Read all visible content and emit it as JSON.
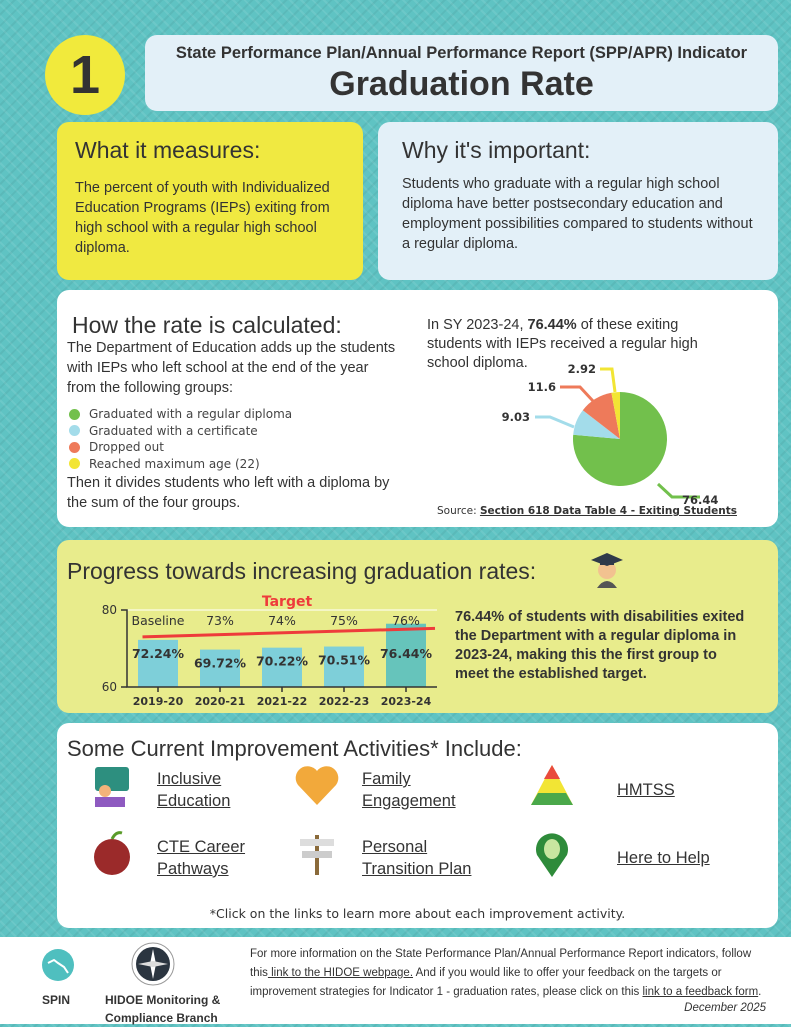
{
  "header": {
    "number": "1",
    "subtitle": "State Performance Plan/Annual Performance Report (SPP/APR) Indicator",
    "title": "Graduation Rate"
  },
  "measures": {
    "heading": "What it measures:",
    "text": "The percent of youth with Individualized Education Programs (IEPs) exiting from high school with a regular high school diploma."
  },
  "important": {
    "heading": "Why it's important:",
    "text": "Students who graduate with a regular high school diploma have better postsecondary education and employment possibilities compared to students without a regular diploma."
  },
  "calc": {
    "heading": "How the rate is calculated:",
    "intro": "The Department of Education adds up the students with IEPs who left school at the end of the year from the following groups:",
    "legend": [
      {
        "label": "Graduated with a regular diploma",
        "color": "#72c04c"
      },
      {
        "label": "Graduated with a certificate",
        "color": "#a3dcea"
      },
      {
        "label": "Dropped out",
        "color": "#ee7a5a"
      },
      {
        "label": "Reached maximum age (22)",
        "color": "#f2e534"
      }
    ],
    "outro": "Then it divides students who left with a diploma by the sum of the four groups.",
    "pie_text_pre": "In SY 2023-24, ",
    "pie_text_bold": "76.44%",
    "pie_text_post": " of these exiting students with IEPs received a regular high school diploma.",
    "source_label": "Source:",
    "source_link": "Section 618 Data Table 4 - Exiting Students"
  },
  "progress": {
    "heading": "Progress towards increasing graduation rates:",
    "text_bold": "76.44%",
    "text": " of students with disabilities exited the Department with a regular diploma in 2023-24, making this the first group to meet the established target."
  },
  "activities": {
    "heading": "Some Current Improvement Activities* Include:",
    "items": [
      {
        "l1": "Inclusive",
        "l2": "Education",
        "icon": "teacher-icon"
      },
      {
        "l1": "Family",
        "l2": "Engagement",
        "icon": "handshake-heart-icon"
      },
      {
        "l1": "HMTSS",
        "l2": "",
        "icon": "pyramid-icon"
      },
      {
        "l1": "CTE Career",
        "l2": "Pathways",
        "icon": "apple-globe-icon"
      },
      {
        "l1": "Personal",
        "l2": "Transition Plan",
        "icon": "signpost-icon"
      },
      {
        "l1": "Here to Help",
        "l2": "",
        "icon": "map-pin-leaf-icon"
      }
    ],
    "note": "*Click on the links to learn more about each improvement activity."
  },
  "footer": {
    "spin": "SPIN",
    "branch1": "HIDOE Monitoring &",
    "branch2": "Compliance Branch",
    "t1": "For more information on the State Performance Plan/Annual Performance Report indicators, follow this",
    "link1": " link to the HIDOE webpage.",
    "t2": "  And if you would like to offer your feedback on the targets or improvement strategies for Indicator 1 - graduation rates, please click on this ",
    "link2": "link to a feedback form",
    "t3": ".",
    "date": "December 2025"
  },
  "chart_data": [
    {
      "type": "pie",
      "values": [
        76.44,
        9.03,
        11.6,
        2.92
      ],
      "labels": [
        "76.44",
        "9.03",
        "11.6",
        "2.92"
      ],
      "categories": [
        "Graduated with a regular diploma",
        "Graduated with a certificate",
        "Dropped out",
        "Reached maximum age (22)"
      ],
      "colors": [
        "#72c04c",
        "#a3dcea",
        "#ee7a5a",
        "#f2e534"
      ]
    },
    {
      "type": "bar",
      "categories": [
        "2019-20",
        "2020-21",
        "2021-22",
        "2022-23",
        "2023-24"
      ],
      "values": [
        72.24,
        69.72,
        70.22,
        70.51,
        76.44
      ],
      "value_labels": [
        "72.24%",
        "69.72%",
        "70.22%",
        "70.51%",
        "76.44%"
      ],
      "target_labels": [
        "Baseline",
        "73%",
        "74%",
        "75%",
        "76%"
      ],
      "target_line_label": "Target",
      "target_line": [
        72.24,
        76
      ],
      "ylim": [
        60,
        80
      ],
      "yticks": [
        "60",
        "80"
      ],
      "bar_colors": [
        "#7ecfd9",
        "#7ecfd9",
        "#7ecfd9",
        "#7ecfd9",
        "#66c4bb"
      ],
      "target_color": "#ee3b3b"
    }
  ]
}
